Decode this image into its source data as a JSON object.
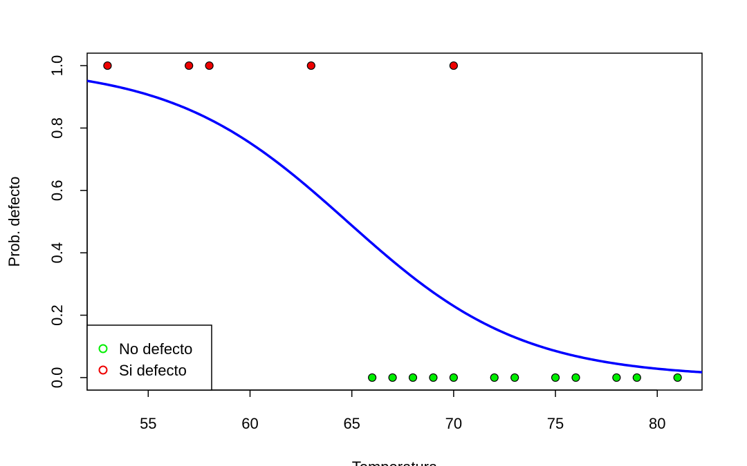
{
  "chart_data": {
    "type": "scatter",
    "xlabel": "Temperatura",
    "ylabel": "Prob. defecto",
    "xlim": [
      52,
      82.2
    ],
    "ylim": [
      -0.04,
      1.04
    ],
    "x_ticks": [
      55,
      60,
      65,
      70,
      75,
      80
    ],
    "y_ticks": [
      0.0,
      0.2,
      0.4,
      0.6,
      0.8,
      1.0
    ],
    "x_tick_labels": [
      "55",
      "60",
      "65",
      "70",
      "75",
      "80"
    ],
    "y_tick_labels": [
      "0.0",
      "0.2",
      "0.4",
      "0.6",
      "0.8",
      "1.0"
    ],
    "grid": false,
    "legend_position": "bottom-left",
    "series": [
      {
        "name": "No defecto",
        "color": "#00ee00",
        "x": [
          66,
          67,
          68,
          69,
          70,
          72,
          73,
          75,
          76,
          78,
          79,
          81
        ],
        "y": [
          0,
          0,
          0,
          0,
          0,
          0,
          0,
          0,
          0,
          0,
          0,
          0
        ]
      },
      {
        "name": "Si defecto",
        "color": "#ee0000",
        "x": [
          53,
          57,
          58,
          63,
          70
        ],
        "y": [
          1,
          1,
          1,
          1,
          1
        ]
      }
    ],
    "fitted_curve": {
      "type": "logistic",
      "color": "#0000ff",
      "intercept": 15.0429,
      "slope": -0.2322
    }
  }
}
